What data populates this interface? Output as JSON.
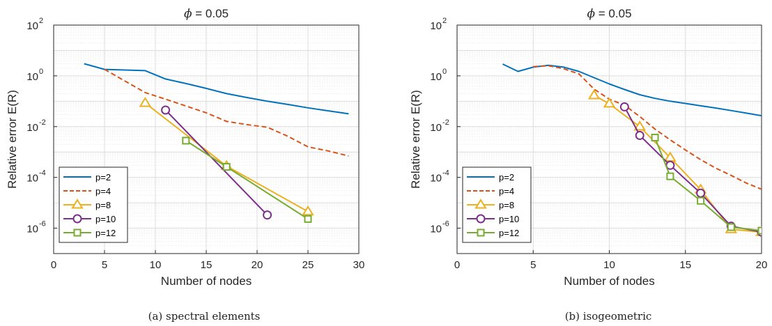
{
  "figure": {
    "subfigures": [
      {
        "caption": "(a) spectral elements"
      },
      {
        "caption": "(b) isogeometric"
      }
    ]
  },
  "series_style": [
    {
      "name": "p=2",
      "color": "#0072BD",
      "dash": "solid",
      "marker": "none"
    },
    {
      "name": "p=4",
      "color": "#D95319",
      "dash": "dashed",
      "marker": "none"
    },
    {
      "name": "p=8",
      "color": "#EDB120",
      "dash": "solid",
      "marker": "triangle"
    },
    {
      "name": "p=10",
      "color": "#7E2F8E",
      "dash": "solid",
      "marker": "circle"
    },
    {
      "name": "p=12",
      "color": "#77AC30",
      "dash": "solid",
      "marker": "square"
    }
  ],
  "chart_data": [
    {
      "type": "line",
      "title_prefix": "ϕ",
      "title_suffix": " = 0.05",
      "xlabel": "Number of nodes",
      "ylabel": "Relative error E(R)",
      "xlim": [
        0,
        30
      ],
      "ylim": [
        1e-07,
        100
      ],
      "yscale": "log",
      "grid": true,
      "legend_position": "lower-left",
      "xticks": [
        0,
        5,
        10,
        15,
        20,
        25,
        30
      ],
      "yticks": [
        -6,
        -4,
        -2,
        0,
        2
      ],
      "series": [
        {
          "name": "p=2",
          "x": [
            3,
            5,
            9,
            11,
            13,
            15,
            17,
            19,
            21,
            23,
            25,
            27,
            29
          ],
          "y": [
            3.0,
            1.8,
            1.6,
            0.75,
            0.5,
            0.32,
            0.2,
            0.14,
            0.1,
            0.075,
            0.055,
            0.042,
            0.032
          ]
        },
        {
          "name": "p=4",
          "x": [
            5,
            9,
            11,
            13,
            15,
            17,
            19,
            21,
            23,
            25,
            27,
            29
          ],
          "y": [
            1.8,
            0.22,
            0.12,
            0.065,
            0.035,
            0.016,
            0.012,
            0.0095,
            0.0042,
            0.0016,
            0.0011,
            0.0007
          ]
        },
        {
          "name": "p=8",
          "x": [
            9,
            17,
            25
          ],
          "y": [
            0.085,
            0.00028,
            4.5e-06
          ]
        },
        {
          "name": "p=10",
          "x": [
            11,
            21
          ],
          "y": [
            0.045,
            3.3e-06
          ]
        },
        {
          "name": "p=12",
          "x": [
            13,
            17,
            25
          ],
          "y": [
            0.0028,
            0.00026,
            2.3e-06
          ]
        }
      ]
    },
    {
      "type": "line",
      "title_prefix": "ϕ",
      "title_suffix": " = 0.05",
      "xlabel": "Number of nodes",
      "ylabel": "Relative error E(R)",
      "xlim": [
        0,
        20
      ],
      "ylim": [
        1e-07,
        100
      ],
      "yscale": "log",
      "grid": true,
      "legend_position": "lower-left",
      "xticks": [
        0,
        5,
        10,
        15,
        20
      ],
      "yticks": [
        -6,
        -4,
        -2,
        0,
        2
      ],
      "series": [
        {
          "name": "p=2",
          "x": [
            3,
            4,
            5,
            6,
            7,
            8,
            9,
            10,
            11,
            12,
            13,
            14,
            15,
            16,
            17,
            18,
            19,
            20
          ],
          "y": [
            2.9,
            1.5,
            2.2,
            2.6,
            2.2,
            1.5,
            0.85,
            0.48,
            0.29,
            0.18,
            0.13,
            0.1,
            0.082,
            0.066,
            0.054,
            0.043,
            0.034,
            0.027
          ]
        },
        {
          "name": "p=4",
          "x": [
            5,
            6,
            7,
            8,
            9,
            10,
            11,
            12,
            13,
            14,
            15,
            16,
            17,
            18,
            19,
            20
          ],
          "y": [
            2.3,
            2.5,
            1.9,
            1.2,
            0.3,
            0.12,
            0.07,
            0.025,
            0.008,
            0.003,
            0.0012,
            0.0005,
            0.00023,
            0.00012,
            6e-05,
            3.4e-05
          ]
        },
        {
          "name": "p=8",
          "x": [
            9,
            10,
            12,
            14,
            16,
            18,
            20
          ],
          "y": [
            0.17,
            0.08,
            0.01,
            0.0006,
            3.3e-05,
            9e-07,
            7e-07
          ]
        },
        {
          "name": "p=10",
          "x": [
            11,
            12,
            14,
            16,
            18,
            20
          ],
          "y": [
            0.06,
            0.0045,
            0.0003,
            2.4e-05,
            1.2e-06,
            7e-07
          ]
        },
        {
          "name": "p=12",
          "x": [
            13,
            14,
            16,
            18,
            20
          ],
          "y": [
            0.0037,
            0.00011,
            1.2e-05,
            1.1e-06,
            8e-07
          ]
        }
      ]
    }
  ]
}
